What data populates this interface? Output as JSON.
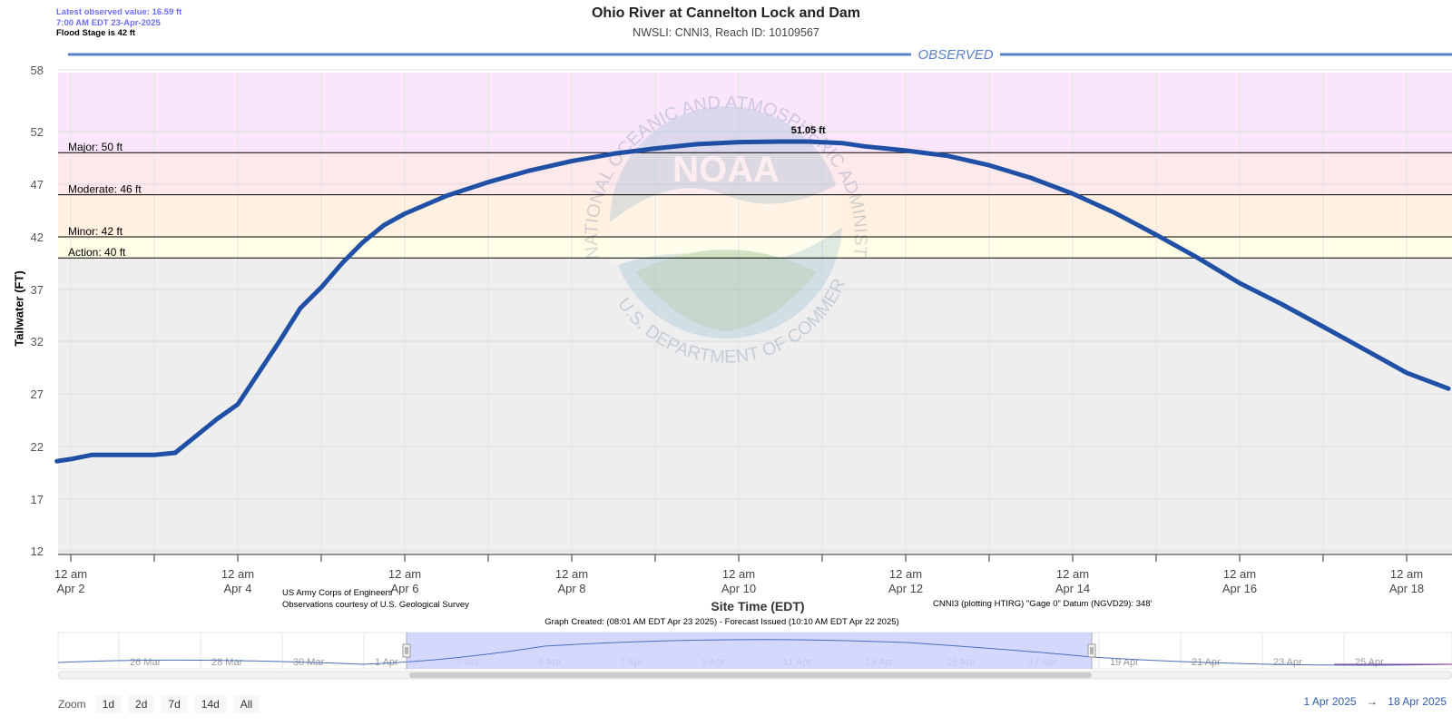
{
  "header": {
    "latest_observed": "Latest observed value: 16.59 ft",
    "latest_time": "7:00 AM EDT 23-Apr-2025",
    "flood_stage": "Flood Stage is 42 ft",
    "title": "Ohio River at Cannelton Lock and Dam",
    "subtitle": "NWSLI: CNNI3, Reach ID: 10109567"
  },
  "colors": {
    "series": "#1f50a5",
    "major_band": "#fde8ec",
    "moderate_band": "#fff0e0",
    "minor_band": "#fffde6",
    "action_band": "#eeeeee",
    "record_band": "#fae6fa",
    "navigator_mask": "#cdd1ff",
    "accent": "#335cad"
  },
  "watermark": {
    "text_top": "NATIONAL OCEANIC AND ATMOSPHERIC ADMINISTRATION",
    "text_bottom": "U.S. DEPARTMENT OF COMMERCE",
    "logo_text": "NOAA"
  },
  "chart_data": {
    "type": "line",
    "title": "Ohio River at Cannelton Lock and Dam",
    "subtitle": "NWSLI: CNNI3, Reach ID: 10109567",
    "xlabel": "Site Time (EDT)",
    "ylabel": "Tailwater (FT)",
    "y_ticks": [
      12,
      17,
      22,
      27,
      32,
      37,
      42,
      47,
      52,
      58
    ],
    "ylim": [
      12,
      58
    ],
    "xlim": [
      "2025-04-01T20:00",
      "2025-04-18T12:00"
    ],
    "x_tick_labels": [
      {
        "time": "12 am",
        "date": "Apr 2"
      },
      {
        "time": "12 am",
        "date": "Apr 4"
      },
      {
        "time": "12 am",
        "date": "Apr 6"
      },
      {
        "time": "12 am",
        "date": "Apr 8"
      },
      {
        "time": "12 am",
        "date": "Apr 10"
      },
      {
        "time": "12 am",
        "date": "Apr 12"
      },
      {
        "time": "12 am",
        "date": "Apr 14"
      },
      {
        "time": "12 am",
        "date": "Apr 16"
      },
      {
        "time": "12 am",
        "date": "Apr 18"
      }
    ],
    "series_label": "OBSERVED",
    "series": [
      {
        "x": [
          "2025-04-01T20:00",
          "2025-04-02T00:00",
          "2025-04-02T06:00",
          "2025-04-02T12:00",
          "2025-04-03T00:00",
          "2025-04-03T06:00",
          "2025-04-03T12:00",
          "2025-04-03T18:00",
          "2025-04-04T00:00",
          "2025-04-04T06:00",
          "2025-04-04T12:00",
          "2025-04-04T18:00",
          "2025-04-05T00:00",
          "2025-04-05T06:00",
          "2025-04-05T12:00",
          "2025-04-05T18:00",
          "2025-04-06T00:00",
          "2025-04-06T12:00",
          "2025-04-07T00:00",
          "2025-04-07T12:00",
          "2025-04-08T00:00",
          "2025-04-08T12:00",
          "2025-04-09T00:00",
          "2025-04-09T12:00",
          "2025-04-10T00:00",
          "2025-04-10T12:00",
          "2025-04-10T20:00",
          "2025-04-11T06:00",
          "2025-04-11T12:00",
          "2025-04-12T00:00",
          "2025-04-12T12:00",
          "2025-04-13T00:00",
          "2025-04-13T12:00",
          "2025-04-14T00:00",
          "2025-04-14T12:00",
          "2025-04-15T00:00",
          "2025-04-15T12:00",
          "2025-04-16T00:00",
          "2025-04-16T12:00",
          "2025-04-17T00:00",
          "2025-04-17T12:00",
          "2025-04-18T00:00",
          "2025-04-18T12:00"
        ],
        "values": [
          20.6,
          20.8,
          21.2,
          21.2,
          21.2,
          21.4,
          23.0,
          24.6,
          26.0,
          29.0,
          32.0,
          35.2,
          37.2,
          39.5,
          41.5,
          43.1,
          44.2,
          45.9,
          47.2,
          48.3,
          49.2,
          49.9,
          50.4,
          50.8,
          51.0,
          51.05,
          51.05,
          50.9,
          50.6,
          50.2,
          49.7,
          48.8,
          47.6,
          46.1,
          44.3,
          42.2,
          40.0,
          37.6,
          35.6,
          33.4,
          31.2,
          29.0,
          27.5
        ]
      }
    ],
    "annotations": [
      {
        "label": "51.05 ft",
        "x": "2025-04-10T20:00",
        "y": 51.05
      }
    ],
    "threshold_lines": [
      {
        "label": "Major: 50 ft",
        "value": 50
      },
      {
        "label": "Moderate: 46 ft",
        "value": 46
      },
      {
        "label": "Minor: 42 ft",
        "value": 42
      },
      {
        "label": "Action: 40 ft",
        "value": 40
      }
    ],
    "grid": true
  },
  "footer": {
    "credit_line1": "US Army Corps of Engineers",
    "credit_line2": "Observations courtesy of U.S. Geological Survey",
    "datum": "CNNI3 (plotting HTIRG) \"Gage 0\" Datum (NGVD29): 348'",
    "graph_created": "Graph Created: (08:01 AM EDT Apr 23 2025) - Forecast Issued (10:10 AM EDT Apr 22 2025)"
  },
  "navigator": {
    "labels": [
      "26 Mar",
      "28 Mar",
      "30 Mar",
      "1 Apr",
      "3 Apr",
      "5 Apr",
      "7 Apr",
      "9 Apr",
      "11 Apr",
      "13 Apr",
      "15 Apr",
      "17 Apr",
      "19 Apr",
      "21 Apr",
      "23 Apr",
      "25 Apr"
    ],
    "selection_start": "1 Apr 2025",
    "selection_end": "18 Apr 2025"
  },
  "zoom": {
    "label": "Zoom",
    "buttons": [
      "1d",
      "2d",
      "7d",
      "14d",
      "All"
    ]
  },
  "range": {
    "from": "1 Apr 2025",
    "arrow": "→",
    "to": "18 Apr 2025"
  }
}
